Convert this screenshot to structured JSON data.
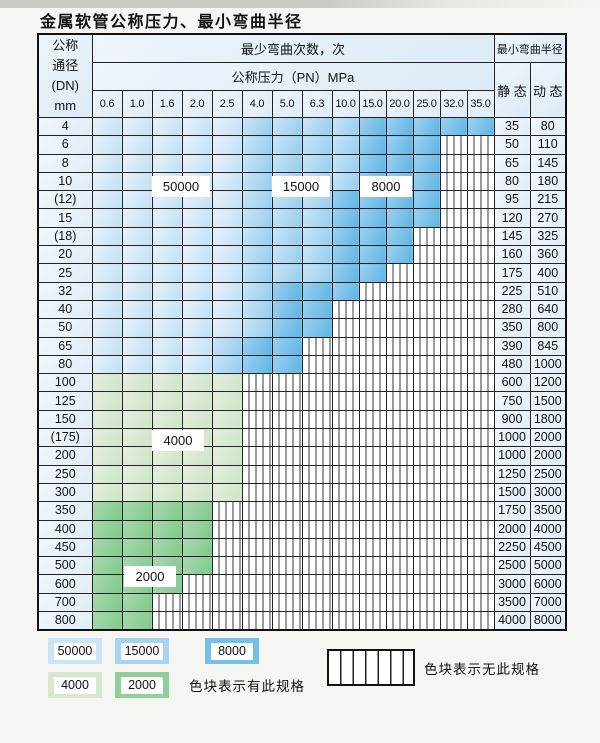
{
  "title": "金属软管公称压力、最小弯曲半径",
  "header": {
    "dn_col": [
      "公称",
      "通径",
      "(DN)",
      "mm"
    ],
    "cycles_label": "最少弯曲次数，次",
    "pn_label": "公称压力（PN）MPa",
    "radius_label": "最小弯曲半径",
    "static_label": "静 态",
    "dynamic_label": "动 态",
    "pressures": [
      "0.6",
      "1.0",
      "1.6",
      "2.0",
      "2.5",
      "4.0",
      "5.0",
      "6.3",
      "10.0",
      "15.0",
      "20.0",
      "25.0",
      "32.0",
      "35.0"
    ]
  },
  "colors": {
    "cycles_50000": "#c9e5f6",
    "cycles_15000": "#a4d4f0",
    "cycles_8000": "#74bfe7",
    "cycles_4000": "#d6e9cf",
    "cycles_2000": "#8ed097",
    "no_spec_hatch_line": "#3a3a3a",
    "grid_line": "#222222",
    "cell_base": "#ecf4fa"
  },
  "zone_labels": [
    "50000",
    "15000",
    "8000",
    "4000",
    "2000"
  ],
  "rows": [
    {
      "dn": "4",
      "static": "35",
      "dynamic": "80",
      "segments": [
        {
          "color": "c50",
          "span": 5
        },
        {
          "color": "c15",
          "span": 4
        },
        {
          "color": "c8",
          "span": 5
        }
      ]
    },
    {
      "dn": "6",
      "static": "50",
      "dynamic": "110",
      "segments": [
        {
          "color": "c50",
          "span": 5
        },
        {
          "color": "c15",
          "span": 4
        },
        {
          "color": "c8",
          "span": 3
        },
        {
          "color": "hatch",
          "span": 2
        }
      ]
    },
    {
      "dn": "8",
      "static": "65",
      "dynamic": "145",
      "segments": [
        {
          "color": "c50",
          "span": 5
        },
        {
          "color": "c15",
          "span": 4
        },
        {
          "color": "c8",
          "span": 3
        },
        {
          "color": "hatch",
          "span": 2
        }
      ]
    },
    {
      "dn": "10",
      "static": "80",
      "dynamic": "180",
      "segments": [
        {
          "color": "c50",
          "span": 5
        },
        {
          "color": "c15",
          "span": 4
        },
        {
          "color": "c8",
          "span": 3
        },
        {
          "color": "hatch",
          "span": 2
        }
      ]
    },
    {
      "dn": "(12)",
      "static": "95",
      "dynamic": "215",
      "segments": [
        {
          "color": "c50",
          "span": 5
        },
        {
          "color": "c15",
          "span": 3
        },
        {
          "color": "c8",
          "span": 4
        },
        {
          "color": "hatch",
          "span": 2
        }
      ]
    },
    {
      "dn": "15",
      "static": "120",
      "dynamic": "270",
      "segments": [
        {
          "color": "c50",
          "span": 5
        },
        {
          "color": "c15",
          "span": 3
        },
        {
          "color": "c8",
          "span": 4
        },
        {
          "color": "hatch",
          "span": 2
        }
      ]
    },
    {
      "dn": "(18)",
      "static": "145",
      "dynamic": "325",
      "segments": [
        {
          "color": "c50",
          "span": 5
        },
        {
          "color": "c15",
          "span": 3
        },
        {
          "color": "c8",
          "span": 3
        },
        {
          "color": "hatch",
          "span": 3
        }
      ]
    },
    {
      "dn": "20",
      "static": "160",
      "dynamic": "360",
      "segments": [
        {
          "color": "c50",
          "span": 5
        },
        {
          "color": "c15",
          "span": 3
        },
        {
          "color": "c8",
          "span": 3
        },
        {
          "color": "hatch",
          "span": 3
        }
      ]
    },
    {
      "dn": "25",
      "static": "175",
      "dynamic": "400",
      "segments": [
        {
          "color": "c50",
          "span": 5
        },
        {
          "color": "c15",
          "span": 3
        },
        {
          "color": "c8",
          "span": 2
        },
        {
          "color": "hatch",
          "span": 4
        }
      ]
    },
    {
      "dn": "32",
      "static": "225",
      "dynamic": "510",
      "segments": [
        {
          "color": "c50",
          "span": 5
        },
        {
          "color": "c15",
          "span": 1
        },
        {
          "color": "c8",
          "span": 3
        },
        {
          "color": "hatch",
          "span": 5
        }
      ]
    },
    {
      "dn": "40",
      "static": "280",
      "dynamic": "640",
      "segments": [
        {
          "color": "c50",
          "span": 5
        },
        {
          "color": "c15",
          "span": 1
        },
        {
          "color": "c8",
          "span": 2
        },
        {
          "color": "hatch",
          "span": 6
        }
      ]
    },
    {
      "dn": "50",
      "static": "350",
      "dynamic": "800",
      "segments": [
        {
          "color": "c50",
          "span": 5
        },
        {
          "color": "c15",
          "span": 1
        },
        {
          "color": "c8",
          "span": 2
        },
        {
          "color": "hatch",
          "span": 6
        }
      ]
    },
    {
      "dn": "65",
      "static": "390",
      "dynamic": "845",
      "segments": [
        {
          "color": "c50",
          "span": 4
        },
        {
          "color": "c15",
          "span": 1
        },
        {
          "color": "c8",
          "span": 2
        },
        {
          "color": "hatch",
          "span": 7
        }
      ]
    },
    {
      "dn": "80",
      "static": "480",
      "dynamic": "1000",
      "segments": [
        {
          "color": "c50",
          "span": 4
        },
        {
          "color": "c15",
          "span": 1
        },
        {
          "color": "c8",
          "span": 2
        },
        {
          "color": "hatch",
          "span": 7
        }
      ]
    },
    {
      "dn": "100",
      "static": "600",
      "dynamic": "1200",
      "segments": [
        {
          "color": "g4",
          "span": 5
        },
        {
          "color": "hatch",
          "span": 9
        }
      ]
    },
    {
      "dn": "125",
      "static": "750",
      "dynamic": "1500",
      "segments": [
        {
          "color": "g4",
          "span": 5
        },
        {
          "color": "hatch",
          "span": 9
        }
      ]
    },
    {
      "dn": "150",
      "static": "900",
      "dynamic": "1800",
      "segments": [
        {
          "color": "g4",
          "span": 5
        },
        {
          "color": "hatch",
          "span": 9
        }
      ]
    },
    {
      "dn": "(175)",
      "static": "1000",
      "dynamic": "2000",
      "segments": [
        {
          "color": "g4",
          "span": 5
        },
        {
          "color": "hatch",
          "span": 9
        }
      ]
    },
    {
      "dn": "200",
      "static": "1000",
      "dynamic": "2000",
      "segments": [
        {
          "color": "g4",
          "span": 5
        },
        {
          "color": "hatch",
          "span": 9
        }
      ]
    },
    {
      "dn": "250",
      "static": "1250",
      "dynamic": "2500",
      "segments": [
        {
          "color": "g4",
          "span": 5
        },
        {
          "color": "hatch",
          "span": 9
        }
      ]
    },
    {
      "dn": "300",
      "static": "1500",
      "dynamic": "3000",
      "segments": [
        {
          "color": "g4",
          "span": 5
        },
        {
          "color": "hatch",
          "span": 9
        }
      ]
    },
    {
      "dn": "350",
      "static": "1750",
      "dynamic": "3500",
      "segments": [
        {
          "color": "g2",
          "span": 4
        },
        {
          "color": "hatch",
          "span": 10
        }
      ]
    },
    {
      "dn": "400",
      "static": "2000",
      "dynamic": "4000",
      "segments": [
        {
          "color": "g2",
          "span": 4
        },
        {
          "color": "hatch",
          "span": 10
        }
      ]
    },
    {
      "dn": "450",
      "static": "2250",
      "dynamic": "4500",
      "segments": [
        {
          "color": "g2",
          "span": 4
        },
        {
          "color": "hatch",
          "span": 10
        }
      ]
    },
    {
      "dn": "500",
      "static": "2500",
      "dynamic": "5000",
      "segments": [
        {
          "color": "g2",
          "span": 4
        },
        {
          "color": "hatch",
          "span": 10
        }
      ]
    },
    {
      "dn": "600",
      "static": "3000",
      "dynamic": "6000",
      "segments": [
        {
          "color": "g2",
          "span": 3
        },
        {
          "color": "hatch",
          "span": 11
        }
      ]
    },
    {
      "dn": "700",
      "static": "3500",
      "dynamic": "7000",
      "segments": [
        {
          "color": "g2",
          "span": 2
        },
        {
          "color": "hatch",
          "span": 12
        }
      ]
    },
    {
      "dn": "800",
      "static": "4000",
      "dynamic": "8000",
      "segments": [
        {
          "color": "g2",
          "span": 2
        },
        {
          "color": "hatch",
          "span": 12
        }
      ]
    }
  ],
  "legend": {
    "available_label": "色块表示有此规格",
    "unavailable_label": "色块表示无此规格",
    "items": [
      {
        "value": "50000",
        "color": "c50"
      },
      {
        "value": "15000",
        "color": "c15"
      },
      {
        "value": "8000",
        "color": "c8"
      },
      {
        "value": "4000",
        "color": "g4"
      },
      {
        "value": "2000",
        "color": "g2"
      }
    ]
  }
}
